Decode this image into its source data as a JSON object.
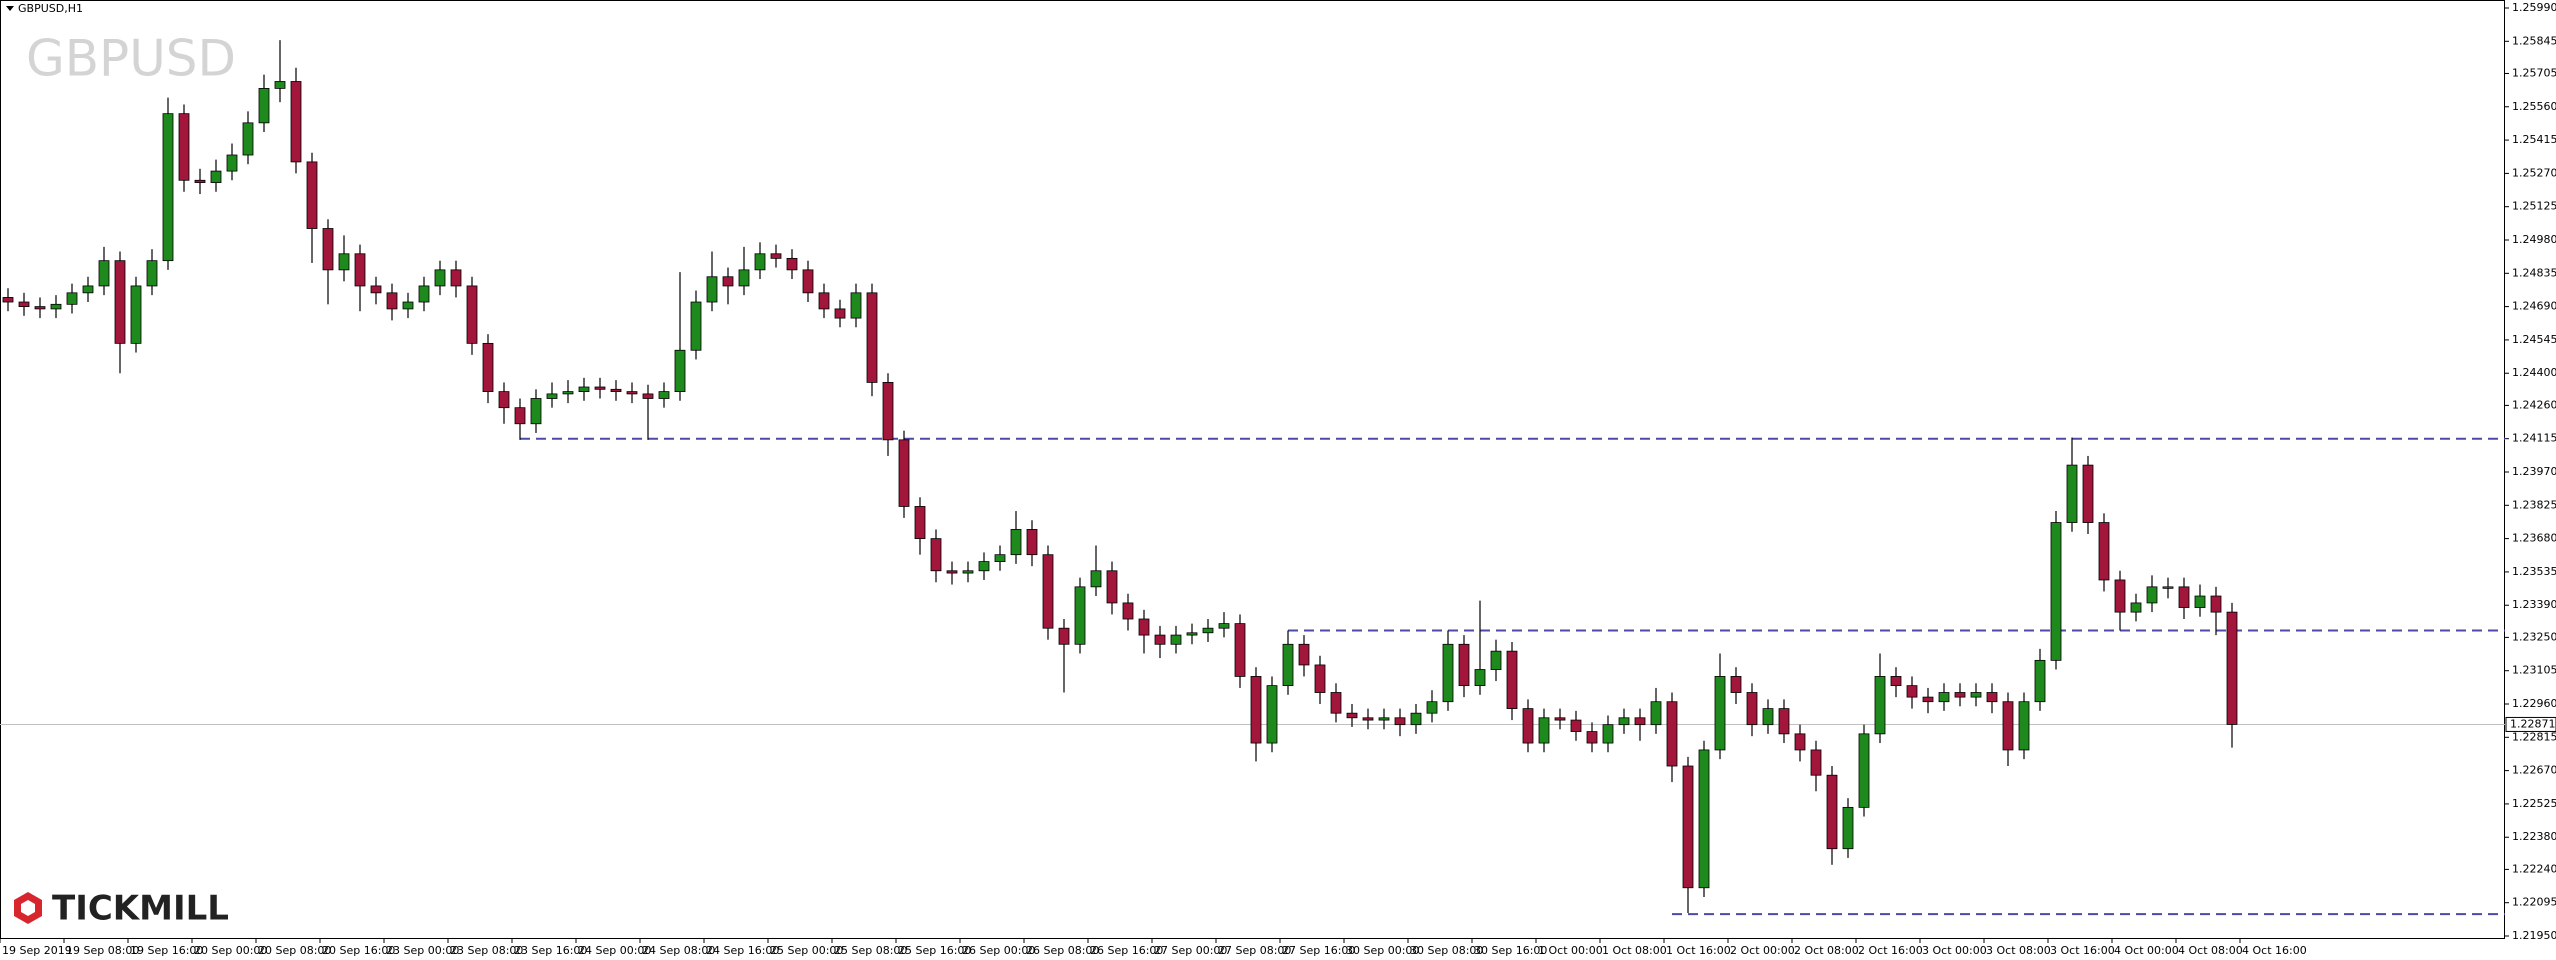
{
  "chart_data": {
    "type": "candlestick",
    "title": "GBPUSD,H1",
    "watermark": "GBPUSD",
    "brand": "TICKMILL",
    "categories": [
      "19 Sep 2019",
      null,
      null,
      null,
      "19 Sep 08:00",
      null,
      null,
      null,
      "19 Sep 16:00",
      null,
      null,
      null,
      "20 Sep 00:00",
      null,
      null,
      null,
      "20 Sep 08:00",
      null,
      null,
      null,
      "20 Sep 16:00",
      null,
      null,
      null,
      "23 Sep 00:00",
      null,
      null,
      null,
      "23 Sep 08:00",
      null,
      null,
      null,
      "23 Sep 16:00",
      null,
      null,
      null,
      "24 Sep 00:00",
      null,
      null,
      null,
      "24 Sep 08:00",
      null,
      null,
      null,
      "24 Sep 16:00",
      null,
      null,
      null,
      "25 Sep 00:00",
      null,
      null,
      null,
      "25 Sep 08:00",
      null,
      null,
      null,
      "25 Sep 16:00",
      null,
      null,
      null,
      "26 Sep 00:00",
      null,
      null,
      null,
      "26 Sep 08:00",
      null,
      null,
      null,
      "26 Sep 16:00",
      null,
      null,
      null,
      "27 Sep 00:00",
      null,
      null,
      null,
      "27 Sep 08:00",
      null,
      null,
      null,
      "27 Sep 16:00",
      null,
      null,
      null,
      "30 Sep 00:00",
      null,
      null,
      null,
      "30 Sep 08:00",
      null,
      null,
      null,
      "30 Sep 16:00",
      null,
      null,
      null,
      "1 Oct 00:00",
      null,
      null,
      null,
      "1 Oct 08:00",
      null,
      null,
      null,
      "1 Oct 16:00",
      null,
      null,
      null,
      "2 Oct 00:00",
      null,
      null,
      null,
      "2 Oct 08:00",
      null,
      null,
      null,
      "2 Oct 16:00",
      null,
      null,
      null,
      "3 Oct 00:00",
      null,
      null,
      null,
      "3 Oct 08:00",
      null,
      null,
      null,
      "3 Oct 16:00",
      null,
      null,
      null,
      "4 Oct 00:00",
      null,
      null,
      null,
      "4 Oct 08:00",
      null,
      null,
      null,
      "4 Oct 16:00",
      null,
      null,
      null
    ],
    "open": [
      1.2473,
      1.2471,
      1.2469,
      1.2468,
      1.247,
      1.2475,
      1.2478,
      1.2489,
      1.2453,
      1.2478,
      1.2489,
      1.2553,
      1.2524,
      1.2523,
      1.2528,
      1.2535,
      1.2549,
      1.2564,
      1.2567,
      1.2532,
      1.2503,
      1.2485,
      1.2492,
      1.2478,
      1.2475,
      1.2468,
      1.2471,
      1.2478,
      1.2485,
      1.2478,
      1.2453,
      1.2432,
      1.2425,
      1.2418,
      1.2429,
      1.2431,
      1.2432,
      1.2434,
      1.2433,
      1.2432,
      1.2431,
      1.2429,
      1.2432,
      1.245,
      1.2471,
      1.2482,
      1.2478,
      1.2485,
      1.2492,
      1.249,
      1.2485,
      1.2475,
      1.2468,
      1.2464,
      1.2475,
      1.2436,
      1.2411,
      1.2382,
      1.2368,
      1.2354,
      1.2353,
      1.2354,
      1.2358,
      1.2361,
      1.2372,
      1.2361,
      1.2329,
      1.2322,
      1.2347,
      1.2354,
      1.234,
      1.2333,
      1.2326,
      1.2322,
      1.2326,
      1.2327,
      1.2329,
      1.2331,
      1.2308,
      1.2279,
      1.2304,
      1.2322,
      1.2313,
      1.2301,
      1.2292,
      1.229,
      1.2289,
      1.229,
      1.2287,
      1.2292,
      1.2297,
      1.2322,
      1.2304,
      1.2311,
      1.2319,
      1.2294,
      1.2279,
      1.229,
      1.2289,
      1.2284,
      1.2279,
      1.2287,
      1.229,
      1.2287,
      1.2297,
      1.2269,
      1.2216,
      1.2276,
      1.2308,
      1.2301,
      1.2287,
      1.2294,
      1.2283,
      1.2276,
      1.2265,
      1.2233,
      1.2251,
      1.2283,
      1.2308,
      1.2304,
      1.2299,
      1.2297,
      1.2301,
      1.2299,
      1.2301,
      1.2297,
      1.2276,
      1.2297,
      1.2315,
      1.2375,
      1.24,
      1.2375,
      1.235,
      1.2336,
      1.234,
      1.2347,
      1.2347,
      1.2338,
      1.2343,
      1.2336,
      null,
      null,
      null,
      null
    ],
    "high": [
      1.2477,
      1.2475,
      1.2473,
      1.2474,
      1.2479,
      1.2482,
      1.2495,
      1.2493,
      1.2482,
      1.2494,
      1.256,
      1.2557,
      1.2529,
      1.2533,
      1.254,
      1.2554,
      1.257,
      1.2585,
      1.2573,
      1.2536,
      1.2507,
      1.25,
      1.2496,
      1.2482,
      1.2479,
      1.2475,
      1.2482,
      1.2489,
      1.2489,
      1.2482,
      1.2457,
      1.2436,
      1.2429,
      1.2433,
      1.2436,
      1.2437,
      1.2438,
      1.2438,
      1.2437,
      1.2436,
      1.2435,
      1.2436,
      1.2484,
      1.2476,
      1.2493,
      1.2486,
      1.2495,
      1.2497,
      1.2496,
      1.2494,
      1.2489,
      1.2479,
      1.2472,
      1.2479,
      1.2479,
      1.244,
      1.2415,
      1.2386,
      1.2372,
      1.2358,
      1.2358,
      1.2362,
      1.2365,
      1.238,
      1.2376,
      1.2365,
      1.2333,
      1.2351,
      1.2365,
      1.2358,
      1.2344,
      1.2337,
      1.233,
      1.233,
      1.2331,
      1.2333,
      1.2336,
      1.2335,
      1.2312,
      1.2308,
      1.2328,
      1.2326,
      1.2317,
      1.2305,
      1.2296,
      1.2294,
      1.2294,
      1.2294,
      1.2296,
      1.2302,
      1.2328,
      1.2326,
      1.2341,
      1.2324,
      1.2323,
      1.2298,
      1.2294,
      1.2294,
      1.2293,
      1.2288,
      1.2291,
      1.2294,
      1.2294,
      1.2303,
      1.2301,
      1.2273,
      1.228,
      1.2318,
      1.2312,
      1.2305,
      1.2298,
      1.2298,
      1.2287,
      1.228,
      1.2269,
      1.2255,
      1.2287,
      1.2318,
      1.2312,
      1.2308,
      1.2303,
      1.2305,
      1.2305,
      1.2305,
      1.2305,
      1.2301,
      1.2301,
      1.232,
      1.238,
      1.2412,
      1.2404,
      1.2379,
      1.2354,
      1.2344,
      1.2352,
      1.2351,
      1.2351,
      1.2348,
      1.2347,
      1.234,
      null,
      null,
      null,
      null
    ],
    "low": [
      1.2467,
      1.2465,
      1.2464,
      1.2464,
      1.2466,
      1.2471,
      1.2474,
      1.244,
      1.2449,
      1.2474,
      1.2485,
      1.2519,
      1.2518,
      1.2519,
      1.2524,
      1.2531,
      1.2545,
      1.2558,
      1.2527,
      1.2488,
      1.247,
      1.248,
      1.2467,
      1.247,
      1.2463,
      1.2464,
      1.2467,
      1.2474,
      1.2473,
      1.2448,
      1.2427,
      1.2418,
      1.2411,
      1.2414,
      1.2425,
      1.2427,
      1.2428,
      1.2429,
      1.2428,
      1.2427,
      1.2411,
      1.2425,
      1.2428,
      1.2446,
      1.2467,
      1.247,
      1.2474,
      1.2481,
      1.2486,
      1.2481,
      1.2471,
      1.2464,
      1.246,
      1.246,
      1.243,
      1.2404,
      1.2377,
      1.2361,
      1.2349,
      1.2348,
      1.2349,
      1.235,
      1.2354,
      1.2357,
      1.2356,
      1.2324,
      1.2301,
      1.2318,
      1.2343,
      1.2335,
      1.2328,
      1.2318,
      1.2316,
      1.2318,
      1.2322,
      1.2323,
      1.2325,
      1.2303,
      1.2271,
      1.2275,
      1.23,
      1.2308,
      1.2296,
      1.2288,
      1.2286,
      1.2285,
      1.2285,
      1.2282,
      1.2283,
      1.2288,
      1.2293,
      1.2299,
      1.23,
      1.2306,
      1.2289,
      1.2275,
      1.2275,
      1.2285,
      1.228,
      1.2275,
      1.2275,
      1.2283,
      1.228,
      1.2283,
      1.2262,
      1.2205,
      1.2212,
      1.2272,
      1.2296,
      1.2282,
      1.2283,
      1.2279,
      1.2271,
      1.2258,
      1.2226,
      1.2229,
      1.2247,
      1.2279,
      1.2299,
      1.2294,
      1.2292,
      1.2293,
      1.2295,
      1.2295,
      1.2292,
      1.2269,
      1.2272,
      1.2293,
      1.2311,
      1.2371,
      1.237,
      1.2345,
      1.2328,
      1.2332,
      1.2336,
      1.2342,
      1.2333,
      1.2334,
      1.2326,
      1.2277,
      null,
      null,
      null,
      null
    ],
    "close": [
      1.2471,
      1.2469,
      1.2468,
      1.247,
      1.2475,
      1.2478,
      1.2489,
      1.2453,
      1.2478,
      1.2489,
      1.2553,
      1.2524,
      1.2523,
      1.2528,
      1.2535,
      1.2549,
      1.2564,
      1.2567,
      1.2532,
      1.2503,
      1.2485,
      1.2492,
      1.2478,
      1.2475,
      1.2468,
      1.2471,
      1.2478,
      1.2485,
      1.2478,
      1.2453,
      1.2432,
      1.2425,
      1.2418,
      1.2429,
      1.2431,
      1.2432,
      1.2434,
      1.2433,
      1.2432,
      1.2431,
      1.2429,
      1.2432,
      1.245,
      1.2471,
      1.2482,
      1.2478,
      1.2485,
      1.2492,
      1.249,
      1.2485,
      1.2475,
      1.2468,
      1.2464,
      1.2475,
      1.2436,
      1.2411,
      1.2382,
      1.2368,
      1.2354,
      1.2353,
      1.2354,
      1.2358,
      1.2361,
      1.2372,
      1.2361,
      1.2329,
      1.2322,
      1.2347,
      1.2354,
      1.234,
      1.2333,
      1.2326,
      1.2322,
      1.2326,
      1.2327,
      1.2329,
      1.2331,
      1.2308,
      1.2279,
      1.2304,
      1.2322,
      1.2313,
      1.2301,
      1.2292,
      1.229,
      1.2289,
      1.229,
      1.2287,
      1.2292,
      1.2297,
      1.2322,
      1.2304,
      1.2311,
      1.2319,
      1.2294,
      1.2279,
      1.229,
      1.2289,
      1.2284,
      1.2279,
      1.2287,
      1.229,
      1.2287,
      1.2297,
      1.2269,
      1.2216,
      1.2276,
      1.2308,
      1.2301,
      1.2287,
      1.2294,
      1.2283,
      1.2276,
      1.2265,
      1.2233,
      1.2251,
      1.2283,
      1.2308,
      1.2304,
      1.2299,
      1.2297,
      1.2301,
      1.2299,
      1.2301,
      1.2297,
      1.2276,
      1.2297,
      1.2315,
      1.2375,
      1.24,
      1.2375,
      1.235,
      1.2336,
      1.234,
      1.2347,
      1.2347,
      1.2338,
      1.2343,
      1.2336,
      1.22871,
      null,
      null,
      null,
      null
    ],
    "up_color": "#1e8a1e",
    "down_color": "#a3163c",
    "ylim": [
      1.2195,
      1.2599
    ],
    "yticks": [
      {
        "value": 1.2599,
        "label": "1.25990"
      },
      1.25845,
      {
        "value": 1.25705,
        "label": "1.25705"
      },
      {
        "value": 1.2556,
        "label": "1.25560"
      },
      1.25415,
      {
        "value": 1.2527,
        "label": "1.25270"
      },
      1.25125,
      {
        "value": 1.2498,
        "label": "1.24980"
      },
      1.24835,
      {
        "value": 1.2469,
        "label": "1.24690"
      },
      1.24545,
      {
        "value": 1.244,
        "label": "1.24400"
      },
      {
        "value": 1.2426,
        "label": "1.24260"
      },
      1.24115,
      {
        "value": 1.2397,
        "label": "1.23970"
      },
      1.23825,
      {
        "value": 1.2368,
        "label": "1.23680"
      },
      1.23535,
      {
        "value": 1.2339,
        "label": "1.23390"
      },
      {
        "value": 1.2325,
        "label": "1.23250"
      },
      1.23105,
      {
        "value": 1.2296,
        "label": "1.22960"
      },
      1.22815,
      {
        "value": 1.2267,
        "label": "1.22670"
      },
      1.22525,
      {
        "value": 1.2238,
        "label": "1.22380"
      },
      {
        "value": 1.2224,
        "label": "1.22240"
      },
      1.22095,
      {
        "value": 1.2195,
        "label": "1.21950"
      }
    ],
    "hlines": [
      {
        "value": 1.24115,
        "from": 32,
        "color": "#4a4aa8"
      },
      {
        "value": 1.2328,
        "from": 80,
        "color": "#4a4aa8"
      },
      {
        "value": 1.22045,
        "from": 104,
        "color": "#4a4aa8"
      }
    ],
    "last_price": 1.22871,
    "grid": false
  }
}
